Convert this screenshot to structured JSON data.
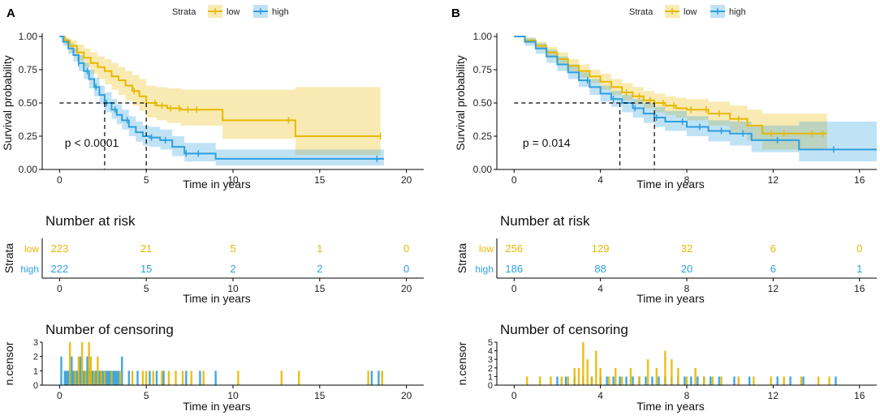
{
  "chart_data": [
    {
      "type": "line",
      "panel_label": "A",
      "legend": {
        "title": "Strata",
        "entries": [
          "low",
          "high"
        ],
        "colors": [
          "#E7B800",
          "#2E9FDF"
        ]
      },
      "survival": {
        "ylabel": "Survival probability",
        "xlabel": "Time in years",
        "xlim": [
          -1,
          21
        ],
        "ylim": [
          0,
          1
        ],
        "xticks": [
          0,
          5,
          10,
          15,
          20
        ],
        "yticks": [
          0,
          0.25,
          0.5,
          0.75,
          1
        ],
        "ytick_labels": [
          "0.00",
          "0.25",
          "0.50",
          "0.75",
          "1.00"
        ],
        "pvalue": "p < 0.0001",
        "pvalue_pos": [
          0.3,
          0.2
        ],
        "median_line": {
          "y": 0.5,
          "medians": [
            2.6,
            5.0
          ]
        },
        "series": [
          {
            "name": "low",
            "color": "#E7B800",
            "x": [
              0,
              0.3,
              0.6,
              1.0,
              1.4,
              1.8,
              2.2,
              2.6,
              3.0,
              3.4,
              3.8,
              4.2,
              4.6,
              5.0,
              5.6,
              6.2,
              7.0,
              8.0,
              9.0,
              9.4,
              13.6,
              18.5
            ],
            "y": [
              1.0,
              0.97,
              0.93,
              0.88,
              0.84,
              0.8,
              0.77,
              0.74,
              0.7,
              0.67,
              0.63,
              0.59,
              0.55,
              0.5,
              0.48,
              0.46,
              0.45,
              0.45,
              0.45,
              0.37,
              0.25,
              0.25
            ],
            "lower": [
              1.0,
              0.94,
              0.88,
              0.82,
              0.77,
              0.72,
              0.68,
              0.64,
              0.6,
              0.56,
              0.52,
              0.48,
              0.44,
              0.39,
              0.37,
              0.35,
              0.33,
              0.33,
              0.33,
              0.23,
              0.11,
              0.11
            ],
            "upper": [
              1.0,
              0.99,
              0.97,
              0.94,
              0.91,
              0.88,
              0.85,
              0.83,
              0.8,
              0.77,
              0.74,
              0.71,
              0.68,
              0.63,
              0.62,
              0.61,
              0.6,
              0.6,
              0.6,
              0.6,
              0.62,
              0.62
            ],
            "censor_x": [
              4.3,
              5.5,
              5.9,
              6.4,
              6.9,
              7.4,
              7.9,
              13.2,
              18.5
            ]
          },
          {
            "name": "high",
            "color": "#2E9FDF",
            "x": [
              0,
              0.2,
              0.5,
              0.8,
              1.1,
              1.4,
              1.7,
              2.0,
              2.3,
              2.6,
              3.0,
              3.3,
              3.6,
              4.0,
              4.4,
              4.8,
              5.2,
              5.8,
              6.5,
              7.2,
              9.0,
              18.7
            ],
            "y": [
              1.0,
              0.96,
              0.91,
              0.86,
              0.8,
              0.74,
              0.68,
              0.62,
              0.56,
              0.5,
              0.45,
              0.41,
              0.37,
              0.32,
              0.28,
              0.25,
              0.24,
              0.22,
              0.17,
              0.12,
              0.08,
              0.08
            ],
            "lower": [
              1.0,
              0.93,
              0.87,
              0.81,
              0.74,
              0.68,
              0.61,
              0.55,
              0.49,
              0.43,
              0.38,
              0.34,
              0.3,
              0.25,
              0.21,
              0.18,
              0.17,
              0.15,
              0.1,
              0.06,
              0.03,
              0.03
            ],
            "upper": [
              1.0,
              0.99,
              0.95,
              0.91,
              0.86,
              0.8,
              0.75,
              0.69,
              0.63,
              0.58,
              0.53,
              0.49,
              0.45,
              0.4,
              0.36,
              0.33,
              0.32,
              0.3,
              0.25,
              0.2,
              0.15,
              0.15
            ],
            "censor_x": [
              1.1,
              1.6,
              2.1,
              2.7,
              3.2,
              3.9,
              5.3,
              6.1,
              7.3,
              8.0,
              18.3
            ]
          }
        ]
      },
      "risk_table": {
        "title": "Number at risk",
        "ylabel": "Strata",
        "xlabel": "Time in years",
        "times": [
          0,
          5,
          10,
          15,
          20
        ],
        "rows": [
          {
            "name": "low",
            "values": [
              223,
              21,
              5,
              1,
              0
            ]
          },
          {
            "name": "high",
            "values": [
              222,
              15,
              2,
              2,
              0
            ]
          }
        ]
      },
      "censoring": {
        "title": "Number of censoring",
        "ylabel": "n.censor",
        "xlabel": "Time in years",
        "ylim": [
          0,
          3
        ],
        "yticks": [
          0,
          1,
          2,
          3
        ],
        "series": [
          {
            "name": "high",
            "times": [
              0.1,
              0.3,
              0.4,
              0.5,
              0.6,
              0.7,
              0.8,
              0.9,
              1.0,
              1.1,
              1.2,
              1.3,
              1.4,
              1.5,
              1.6,
              1.7,
              1.8,
              1.9,
              2.0,
              2.1,
              2.2,
              2.3,
              2.4,
              2.5,
              2.6,
              2.7,
              2.8,
              2.9,
              3.0,
              3.1,
              3.2,
              3.3,
              3.4,
              3.6,
              4.0,
              4.5,
              5.2,
              5.6,
              6.0,
              7.3,
              8.1,
              9.0,
              18.0,
              18.4
            ],
            "counts": [
              2,
              1,
              1,
              1,
              1,
              2,
              1,
              1,
              1,
              1,
              2,
              1,
              1,
              1,
              2,
              1,
              1,
              1,
              1,
              1,
              1,
              1,
              1,
              1,
              1,
              1,
              1,
              1,
              1,
              1,
              1,
              1,
              1,
              2,
              1,
              1,
              1,
              1,
              1,
              1,
              1,
              1,
              1,
              1
            ]
          },
          {
            "name": "low",
            "times": [
              0.6,
              0.9,
              1.1,
              1.3,
              1.5,
              1.7,
              1.8,
              2.0,
              2.2,
              2.4,
              2.6,
              3.0,
              3.5,
              4.2,
              4.8,
              5.0,
              5.4,
              5.9,
              6.3,
              6.7,
              7.1,
              7.6,
              8.3,
              10.3,
              12.8,
              13.8,
              17.8,
              18.6
            ],
            "counts": [
              3,
              1,
              2,
              3,
              1,
              3,
              2,
              1,
              2,
              1,
              1,
              1,
              1,
              1,
              1,
              1,
              1,
              1,
              1,
              1,
              1,
              1,
              1,
              1,
              1,
              1,
              1,
              1
            ]
          }
        ]
      }
    },
    {
      "type": "line",
      "panel_label": "B",
      "legend": {
        "title": "Strata",
        "entries": [
          "low",
          "high"
        ],
        "colors": [
          "#E7B800",
          "#2E9FDF"
        ]
      },
      "survival": {
        "ylabel": "Survival probability",
        "xlabel": "Time in years",
        "xlim": [
          -0.8,
          16.8
        ],
        "ylim": [
          0,
          1
        ],
        "xticks": [
          0,
          4,
          8,
          12,
          16
        ],
        "yticks": [
          0,
          0.25,
          0.5,
          0.75,
          1
        ],
        "ytick_labels": [
          "0.00",
          "0.25",
          "0.50",
          "0.75",
          "1.00"
        ],
        "pvalue": "p = 0.014",
        "pvalue_pos": [
          0.4,
          0.2
        ],
        "median_line": {
          "y": 0.5,
          "medians": [
            4.9,
            6.5
          ]
        },
        "series": [
          {
            "name": "low",
            "color": "#E7B800",
            "x": [
              0,
              0.5,
              1.0,
              1.5,
              2.0,
              2.5,
              3.0,
              3.5,
              4.0,
              4.5,
              5.0,
              5.5,
              6.0,
              6.5,
              7.0,
              7.5,
              8.0,
              9.0,
              10.0,
              10.8,
              11.5,
              14.5
            ],
            "y": [
              1.0,
              0.97,
              0.93,
              0.88,
              0.83,
              0.78,
              0.74,
              0.7,
              0.66,
              0.62,
              0.58,
              0.55,
              0.52,
              0.5,
              0.48,
              0.46,
              0.45,
              0.42,
              0.38,
              0.33,
              0.27,
              0.27
            ],
            "lower": [
              1.0,
              0.95,
              0.9,
              0.84,
              0.79,
              0.74,
              0.69,
              0.65,
              0.6,
              0.56,
              0.52,
              0.49,
              0.46,
              0.43,
              0.41,
              0.39,
              0.37,
              0.33,
              0.28,
              0.22,
              0.15,
              0.15
            ],
            "upper": [
              1.0,
              0.99,
              0.96,
              0.92,
              0.88,
              0.83,
              0.79,
              0.75,
              0.72,
              0.68,
              0.65,
              0.62,
              0.59,
              0.57,
              0.55,
              0.54,
              0.53,
              0.51,
              0.48,
              0.45,
              0.42,
              0.42
            ],
            "censor_x": [
              5.2,
              5.8,
              6.3,
              6.9,
              7.4,
              8.2,
              8.9,
              9.5,
              10.4,
              11.9,
              12.5,
              13.8,
              14.3
            ]
          },
          {
            "name": "high",
            "color": "#2E9FDF",
            "x": [
              0,
              0.5,
              1.0,
              1.5,
              2.0,
              2.5,
              3.0,
              3.5,
              4.0,
              4.5,
              5.0,
              5.5,
              6.0,
              6.5,
              7.0,
              8.0,
              9.0,
              10.0,
              11.0,
              13.2,
              16.8
            ],
            "y": [
              1.0,
              0.96,
              0.91,
              0.85,
              0.79,
              0.73,
              0.67,
              0.62,
              0.57,
              0.53,
              0.5,
              0.46,
              0.42,
              0.39,
              0.36,
              0.32,
              0.29,
              0.27,
              0.22,
              0.15,
              0.15
            ],
            "lower": [
              1.0,
              0.93,
              0.87,
              0.8,
              0.74,
              0.68,
              0.62,
              0.56,
              0.51,
              0.47,
              0.43,
              0.39,
              0.35,
              0.32,
              0.29,
              0.25,
              0.21,
              0.18,
              0.13,
              0.06,
              0.06
            ],
            "upper": [
              1.0,
              0.99,
              0.95,
              0.9,
              0.85,
              0.79,
              0.73,
              0.68,
              0.63,
              0.59,
              0.56,
              0.53,
              0.5,
              0.47,
              0.44,
              0.4,
              0.37,
              0.36,
              0.33,
              0.36,
              0.36
            ],
            "censor_x": [
              3.4,
              4.6,
              5.6,
              6.6,
              7.8,
              8.6,
              9.6,
              10.6,
              12.2,
              14.8
            ]
          }
        ]
      },
      "risk_table": {
        "title": "Number at risk",
        "ylabel": "Strata",
        "xlabel": "Time in years",
        "times": [
          0,
          4,
          8,
          12,
          16
        ],
        "rows": [
          {
            "name": "low",
            "values": [
              256,
              129,
              32,
              6,
              0
            ]
          },
          {
            "name": "high",
            "values": [
              186,
              88,
              20,
              6,
              1
            ]
          }
        ]
      },
      "censoring": {
        "title": "Number of censoring",
        "ylabel": "n.censor",
        "xlabel": "Time in years",
        "ylim": [
          0,
          5
        ],
        "yticks": [
          0,
          1,
          2,
          3,
          4,
          5
        ],
        "series": [
          {
            "name": "high",
            "times": [
              2.0,
              2.4,
              2.8,
              3.2,
              3.6,
              4.0,
              4.3,
              4.6,
              4.9,
              5.2,
              5.5,
              5.8,
              6.1,
              6.4,
              6.7,
              7.0,
              7.3,
              7.6,
              7.9,
              8.2,
              8.5,
              8.8,
              9.1,
              9.5,
              10.2,
              10.9,
              12.2,
              12.8,
              13.4,
              14.9
            ],
            "counts": [
              1,
              1,
              1,
              1,
              1,
              1,
              1,
              1,
              1,
              1,
              1,
              1,
              1,
              1,
              1,
              1,
              1,
              1,
              1,
              1,
              1,
              1,
              1,
              1,
              1,
              1,
              1,
              1,
              1,
              1
            ]
          },
          {
            "name": "low",
            "times": [
              0.6,
              1.2,
              1.7,
              2.2,
              2.5,
              2.8,
              3.0,
              3.2,
              3.4,
              3.6,
              3.8,
              4.0,
              4.4,
              4.7,
              5.0,
              5.4,
              5.8,
              6.2,
              6.6,
              7.0,
              7.3,
              7.6,
              8.0,
              8.4,
              8.8,
              9.2,
              9.6,
              10.4,
              11.1,
              11.9,
              12.5,
              13.3,
              14.1,
              14.6
            ],
            "counts": [
              1,
              1,
              1,
              1,
              1,
              2,
              2,
              5,
              3,
              1,
              4,
              2,
              1,
              2,
              1,
              2,
              1,
              3,
              2,
              4,
              3,
              2,
              1,
              2,
              1,
              1,
              1,
              1,
              1,
              1,
              1,
              1,
              1,
              1
            ]
          }
        ]
      }
    }
  ]
}
